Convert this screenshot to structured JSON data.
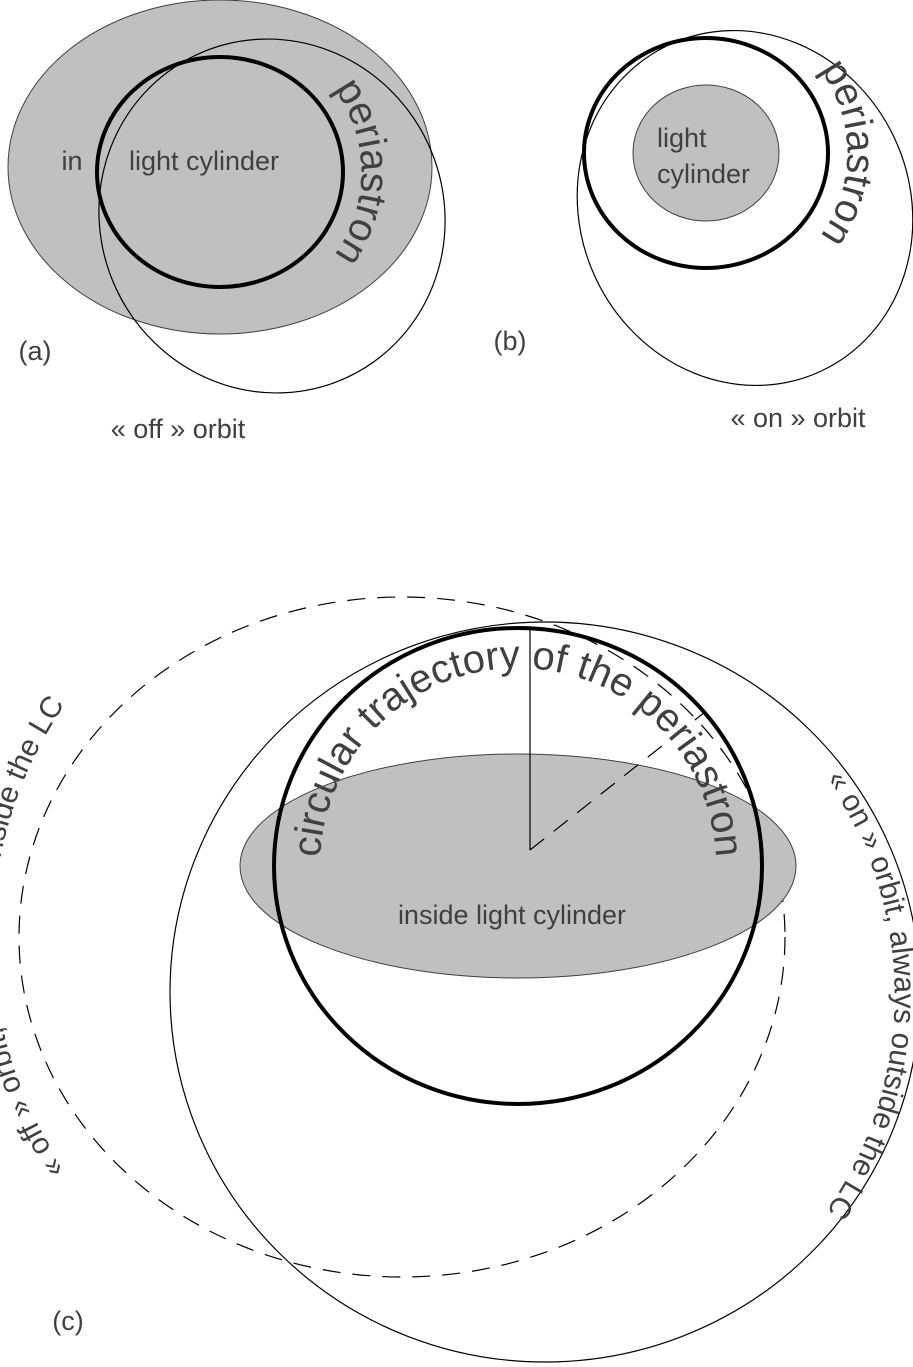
{
  "panel_a": {
    "label": "(a)",
    "in": "in",
    "light_cylinder": "light cylinder",
    "periastron": "periastron",
    "orbit": "« off » orbit"
  },
  "panel_b": {
    "label": "(b)",
    "light": "light",
    "cylinder": "cylinder",
    "periastron": "periastron",
    "orbit": "« on » orbit"
  },
  "panel_c": {
    "label": "(c)",
    "trajectory": "circular trajectory of the periastron",
    "inside": "inside light cylinder",
    "off_orbit": "« off » orbit, sometimes inside the LC",
    "on_orbit": "« on » orbit, always outside the LC"
  }
}
